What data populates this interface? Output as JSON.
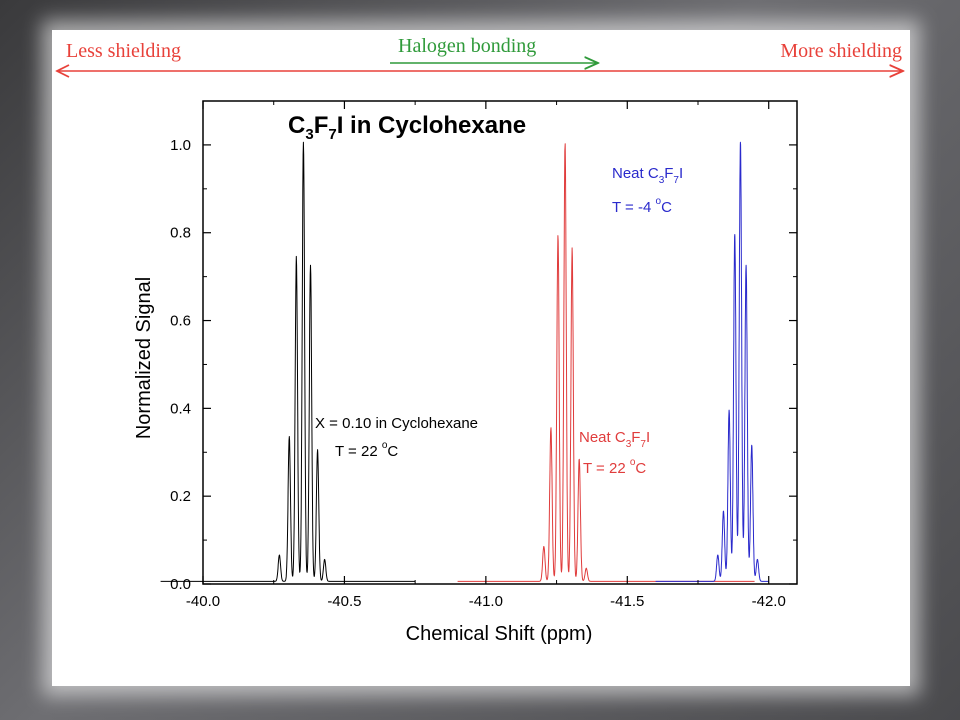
{
  "header": {
    "less_shielding": "Less shielding",
    "more_shielding": "More shielding",
    "halogen_bonding": "Halogen bonding",
    "red_color": "#e8413a",
    "green_color": "#2f9a3a"
  },
  "chart_data": {
    "type": "line",
    "title": {
      "main": "C",
      "s1": "3",
      "mid1": "F",
      "s2": "7",
      "tail": "I in Cyclohexane"
    },
    "xlabel": "Chemical Shift (ppm)",
    "ylabel": "Normalized Signal",
    "xlim": [
      -40.0,
      -42.1
    ],
    "ylim": [
      0.0,
      1.1
    ],
    "x_reversed": true,
    "x_ticks": [
      -40.0,
      -40.5,
      -41.0,
      -41.5,
      -42.0
    ],
    "x_tick_labels": [
      "-40.0",
      "-40.5",
      "-41.0",
      "-41.5",
      "-42.0"
    ],
    "y_ticks": [
      0.0,
      0.2,
      0.4,
      0.6,
      0.8,
      1.0
    ],
    "y_tick_labels": [
      "0.0",
      "0.2",
      "0.4",
      "0.6",
      "0.8",
      "1.0"
    ],
    "grid": false,
    "series": [
      {
        "id": "cyclohexane",
        "color": "#000000",
        "range": [
          -39.85,
          -40.75
        ],
        "peaks": [
          {
            "x": -40.27,
            "y": 0.06
          },
          {
            "x": -40.305,
            "y": 0.33
          },
          {
            "x": -40.33,
            "y": 0.74
          },
          {
            "x": -40.355,
            "y": 1.0
          },
          {
            "x": -40.38,
            "y": 0.72
          },
          {
            "x": -40.405,
            "y": 0.3
          },
          {
            "x": -40.43,
            "y": 0.05
          }
        ]
      },
      {
        "id": "neat-22",
        "color": "#e03c3c",
        "range": [
          -40.9,
          -41.95
        ],
        "peaks": [
          {
            "x": -41.205,
            "y": 0.08
          },
          {
            "x": -41.23,
            "y": 0.35
          },
          {
            "x": -41.255,
            "y": 0.79
          },
          {
            "x": -41.28,
            "y": 1.0
          },
          {
            "x": -41.305,
            "y": 0.76
          },
          {
            "x": -41.33,
            "y": 0.28
          },
          {
            "x": -41.355,
            "y": 0.03
          }
        ]
      },
      {
        "id": "neat-minus4",
        "color": "#2a2acc",
        "range": [
          -41.6,
          -42.0
        ],
        "peaks": [
          {
            "x": -41.82,
            "y": 0.06
          },
          {
            "x": -41.84,
            "y": 0.16
          },
          {
            "x": -41.86,
            "y": 0.39
          },
          {
            "x": -41.88,
            "y": 0.79
          },
          {
            "x": -41.9,
            "y": 1.0
          },
          {
            "x": -41.92,
            "y": 0.72
          },
          {
            "x": -41.94,
            "y": 0.31
          },
          {
            "x": -41.96,
            "y": 0.05
          }
        ]
      }
    ],
    "annotations": {
      "black_line1": "X = 0.10 in Cyclohexane",
      "black_line2_pre": "T = 22 ",
      "black_line2_sup": "o",
      "black_line2_post": "C",
      "red_main": "Neat C",
      "red_s1": "3",
      "red_mid": "F",
      "red_s2": "7",
      "red_tail": "I",
      "red_line2_pre": "T = 22 ",
      "red_line2_sup": "o",
      "red_line2_post": "C",
      "blue_main": "Neat C",
      "blue_s1": "3",
      "blue_mid": "F",
      "blue_s2": "7",
      "blue_tail": "I",
      "blue_line2_pre": "T = -4 ",
      "blue_line2_sup": "o",
      "blue_line2_post": "C",
      "black_color": "#000000",
      "red_color": "#e03c3c",
      "blue_color": "#2a2acc"
    }
  }
}
